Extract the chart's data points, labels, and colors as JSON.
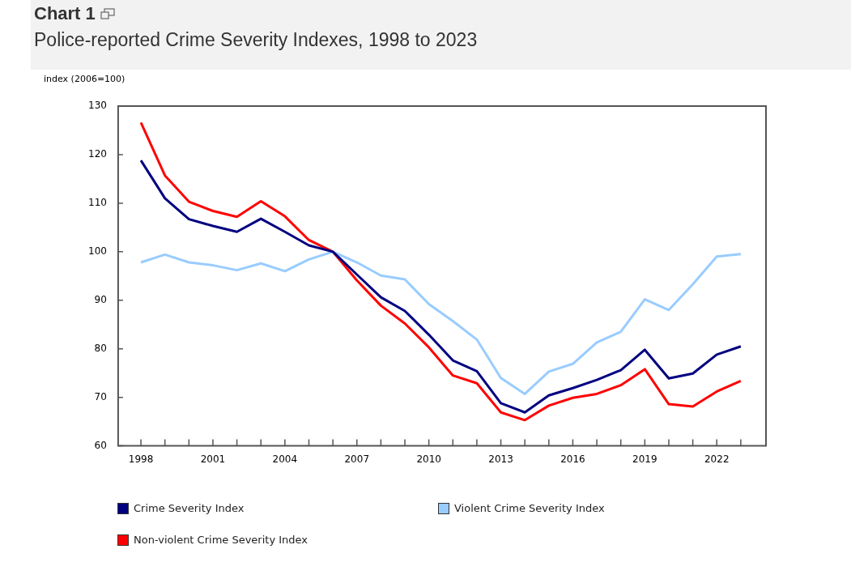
{
  "chart_data": {
    "type": "line",
    "title": "Chart 1",
    "subtitle": "Police-reported Crime Severity Indexes, 1998 to 2023",
    "ylabel": "index (2006=100)",
    "categories": [
      "1998",
      null,
      null,
      "2001",
      null,
      null,
      "2004",
      null,
      null,
      "2007",
      null,
      null,
      "2010",
      null,
      null,
      "2013",
      null,
      null,
      "2016",
      null,
      null,
      "2019",
      null,
      null,
      "2022",
      null
    ],
    "series": [
      {
        "name": "Crime Severity Index",
        "color": "#000080",
        "values": [
          118.8,
          111.0,
          106.7,
          105.3,
          104.1,
          106.8,
          104.1,
          101.3,
          100,
          95.3,
          90.6,
          87.8,
          82.9,
          77.6,
          75.4,
          68.8,
          66.9,
          70.4,
          71.9,
          73.6,
          75.6,
          79.8,
          73.9,
          74.9,
          78.8,
          80.5
        ]
      },
      {
        "name": "Violent Crime Severity Index",
        "color": "#99ccff",
        "values": [
          97.8,
          99.4,
          97.8,
          97.2,
          96.2,
          97.6,
          96.0,
          98.4,
          100,
          97.8,
          95.1,
          94.3,
          89.2,
          85.7,
          81.9,
          74.0,
          70.7,
          75.3,
          76.9,
          81.3,
          83.5,
          90.2,
          88.0,
          93.3,
          99.0,
          99.5
        ]
      },
      {
        "name": "Non-violent Crime Severity Index",
        "color": "#ff0000",
        "values": [
          126.6,
          115.7,
          110.3,
          108.4,
          107.2,
          110.4,
          107.3,
          102.4,
          100,
          94.1,
          88.9,
          85.2,
          80.3,
          74.5,
          72.9,
          66.9,
          65.3,
          68.3,
          69.9,
          70.7,
          72.5,
          75.8,
          68.6,
          68.1,
          71.2,
          73.4
        ]
      }
    ],
    "ylim": [
      60,
      130
    ],
    "yticks": [
      60,
      70,
      80,
      90,
      100,
      110,
      120,
      130
    ],
    "grid": false,
    "legend": "bottom",
    "marker": "none",
    "line_style": "solid"
  }
}
